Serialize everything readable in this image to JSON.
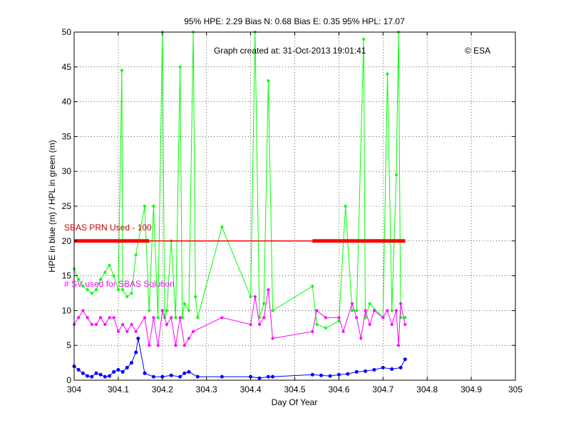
{
  "chart_data": {
    "type": "line",
    "title": "95% HPE: 2.29  Bias N: 0.68  Bias E: 0.35  95% HPL: 17.07",
    "annotation_created": "Graph created at: 31-Oct-2013 19:01:41",
    "annotation_copyright": "© ESA",
    "annotation_prn": "SBAS PRN Used - 100",
    "annotation_sv": "# SV used for SBAS Solution",
    "xlabel": "Day Of Year",
    "ylabel": "HPE in blue (m) / HPL in green (m)",
    "xlim": [
      304,
      305
    ],
    "ylim": [
      0,
      50
    ],
    "xticks": [
      "304",
      "304.1",
      "304.2",
      "304.3",
      "304.4",
      "304.5",
      "304.6",
      "304.7",
      "304.8",
      "304.9",
      "305"
    ],
    "yticks": [
      "0",
      "5",
      "10",
      "15",
      "20",
      "25",
      "30",
      "35",
      "40",
      "45",
      "50"
    ],
    "grid": true,
    "colors": {
      "hpe": "#0000ff",
      "hpl": "#00ff00",
      "sv": "#ff00ff",
      "prn": "#ff0000"
    },
    "series": [
      {
        "key": "hpl",
        "x": [
          304.0,
          304.01,
          304.02,
          304.03,
          304.04,
          304.05,
          304.06,
          304.07,
          304.08,
          304.09,
          304.1,
          304.108,
          304.11,
          304.12,
          304.13,
          304.14,
          304.16,
          304.17,
          304.18,
          304.19,
          304.2,
          304.205,
          304.21,
          304.22,
          304.23,
          304.24,
          304.245,
          304.25,
          304.26,
          304.27,
          304.275,
          304.28,
          304.335,
          304.4,
          304.41,
          304.42,
          304.43,
          304.44,
          304.45,
          304.54,
          304.55,
          304.57,
          304.6,
          304.615,
          304.63,
          304.64,
          304.656,
          304.66,
          304.67,
          304.7,
          304.71,
          304.72,
          304.73,
          304.735,
          304.74,
          304.75
        ],
        "y": [
          16,
          14.5,
          13.5,
          13,
          12.5,
          13,
          14.5,
          15.5,
          16.5,
          15,
          13,
          44.5,
          13,
          12,
          12.5,
          18,
          25,
          10,
          25,
          9,
          50,
          9,
          10,
          20,
          9,
          45,
          9,
          11,
          10,
          50,
          12,
          9,
          22,
          12,
          50,
          9,
          11,
          43,
          10,
          13.5,
          8,
          7.5,
          8.5,
          25,
          10,
          10,
          49,
          9,
          11,
          9,
          44,
          10,
          29.5,
          50,
          9,
          9
        ]
      },
      {
        "key": "sv",
        "x": [
          304.0,
          304.01,
          304.02,
          304.03,
          304.04,
          304.05,
          304.06,
          304.07,
          304.08,
          304.09,
          304.1,
          304.11,
          304.12,
          304.13,
          304.14,
          304.16,
          304.17,
          304.18,
          304.19,
          304.2,
          304.21,
          304.22,
          304.23,
          304.24,
          304.25,
          304.26,
          304.27,
          304.335,
          304.4,
          304.41,
          304.42,
          304.43,
          304.44,
          304.45,
          304.54,
          304.55,
          304.57,
          304.6,
          304.61,
          304.63,
          304.64,
          304.65,
          304.66,
          304.67,
          304.68,
          304.7,
          304.71,
          304.72,
          304.73,
          304.735,
          304.74,
          304.75
        ],
        "y": [
          8,
          9,
          10,
          9,
          8,
          8,
          9,
          8,
          9,
          9,
          7,
          8,
          7,
          8,
          7,
          9,
          5,
          9,
          5,
          10,
          8,
          9,
          5,
          9,
          5,
          6,
          7,
          9,
          8,
          12,
          8,
          9,
          13,
          6,
          7,
          10,
          9,
          9,
          7,
          11,
          9,
          6,
          10,
          8,
          10,
          9,
          10,
          8,
          10,
          5,
          11,
          8
        ]
      },
      {
        "key": "hpe",
        "x": [
          304.0,
          304.01,
          304.02,
          304.03,
          304.04,
          304.05,
          304.06,
          304.07,
          304.08,
          304.09,
          304.1,
          304.11,
          304.12,
          304.13,
          304.14,
          304.145,
          304.16,
          304.18,
          304.2,
          304.22,
          304.24,
          304.25,
          304.26,
          304.28,
          304.335,
          304.4,
          304.42,
          304.44,
          304.45,
          304.54,
          304.56,
          304.58,
          304.6,
          304.62,
          304.64,
          304.66,
          304.68,
          304.7,
          304.72,
          304.74,
          304.75
        ],
        "y": [
          2,
          1.5,
          1,
          0.6,
          0.5,
          1,
          0.8,
          0.5,
          0.6,
          1.2,
          1.5,
          1.2,
          1.8,
          2.5,
          4,
          6,
          1,
          0.5,
          0.5,
          0.7,
          0.5,
          1,
          1.2,
          0.5,
          0.5,
          0.5,
          0.3,
          0.5,
          0.5,
          0.8,
          0.7,
          0.6,
          0.8,
          0.9,
          1.2,
          1.3,
          1.5,
          1.8,
          1.6,
          1.8,
          3
        ]
      },
      {
        "key": "prn",
        "x": [
          304.0,
          304.75
        ],
        "y": [
          20,
          20
        ]
      }
    ]
  }
}
